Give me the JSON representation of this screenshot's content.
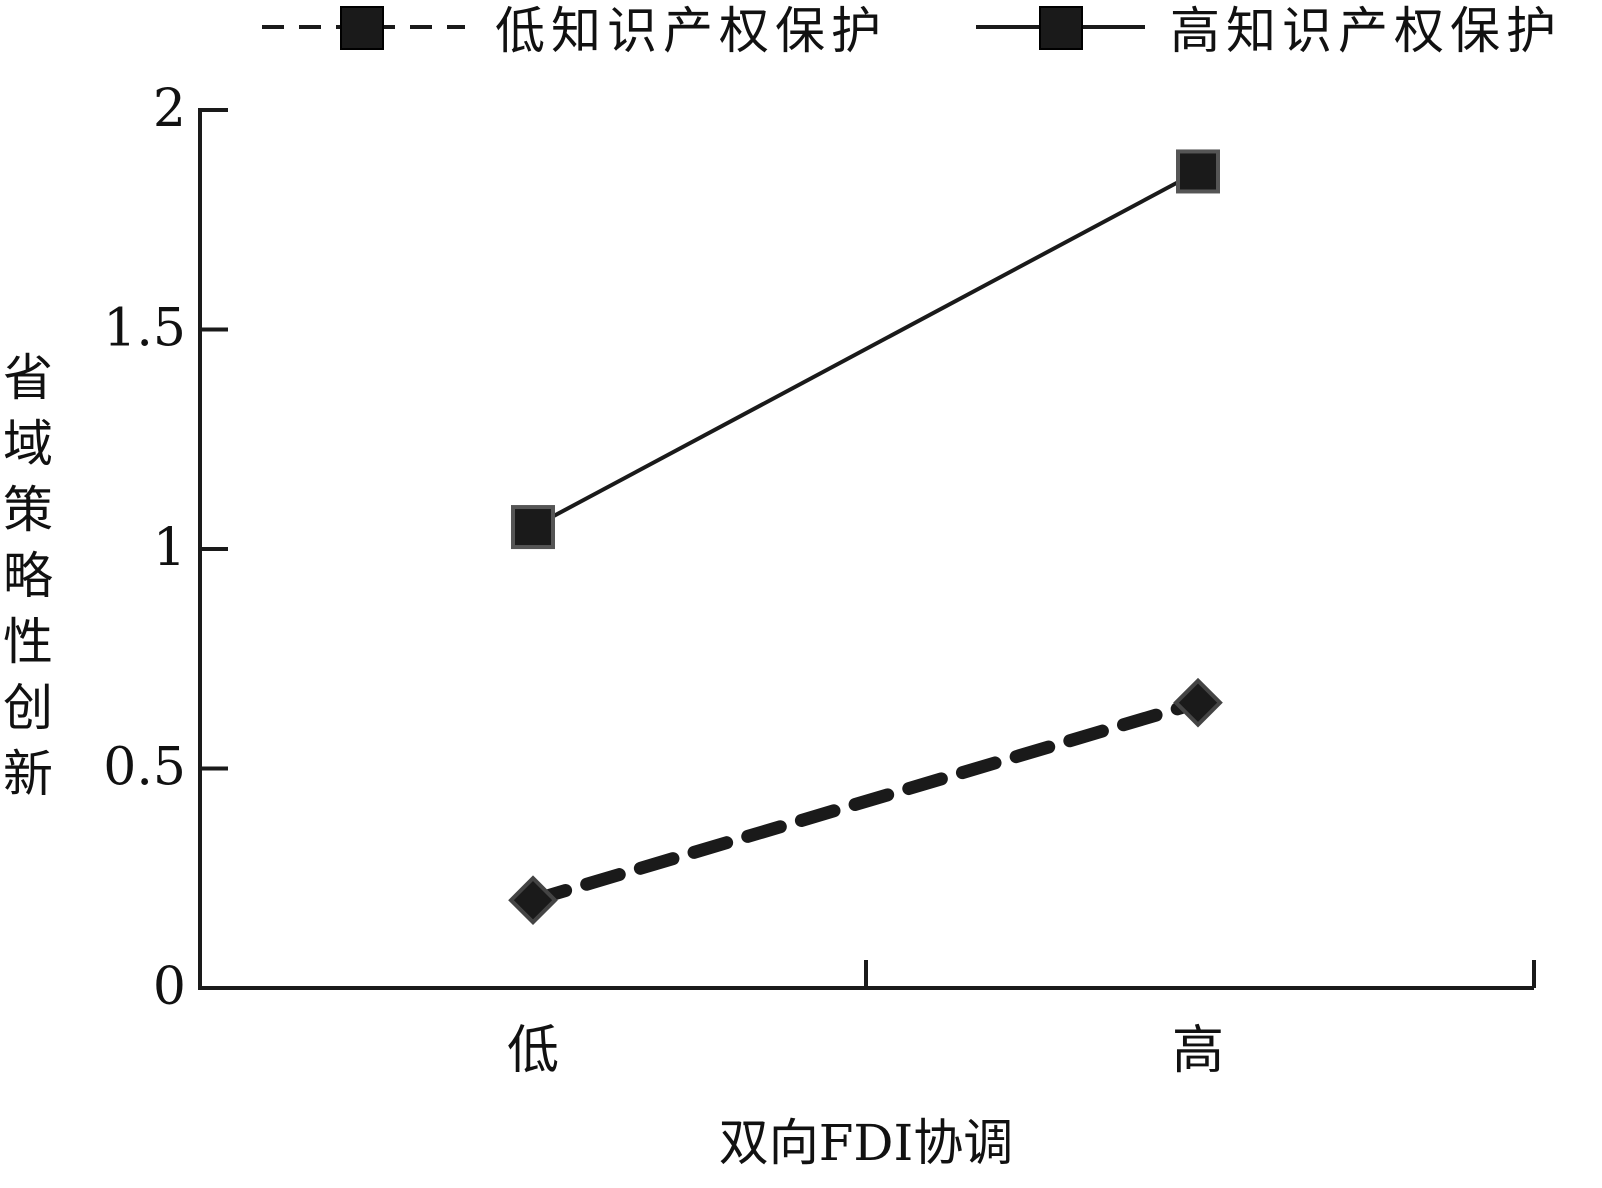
{
  "chart_data": {
    "type": "line",
    "categories": [
      "低",
      "高"
    ],
    "series": [
      {
        "name": "低知识产权保护",
        "values": [
          0.2,
          0.65
        ],
        "style": "dashed",
        "marker": "diamond",
        "color": "#1a1a1a"
      },
      {
        "name": "高知识产权保护",
        "values": [
          1.05,
          1.86
        ],
        "style": "solid",
        "marker": "square",
        "color": "#1a1a1a"
      }
    ],
    "xlabel": "双向FDI协调",
    "ylabel": "省域策略性创新",
    "ylim": [
      0,
      2
    ],
    "yticks": [
      "0",
      "0.5",
      "1",
      "1.5",
      "2"
    ],
    "grid": false,
    "legend": "top"
  }
}
